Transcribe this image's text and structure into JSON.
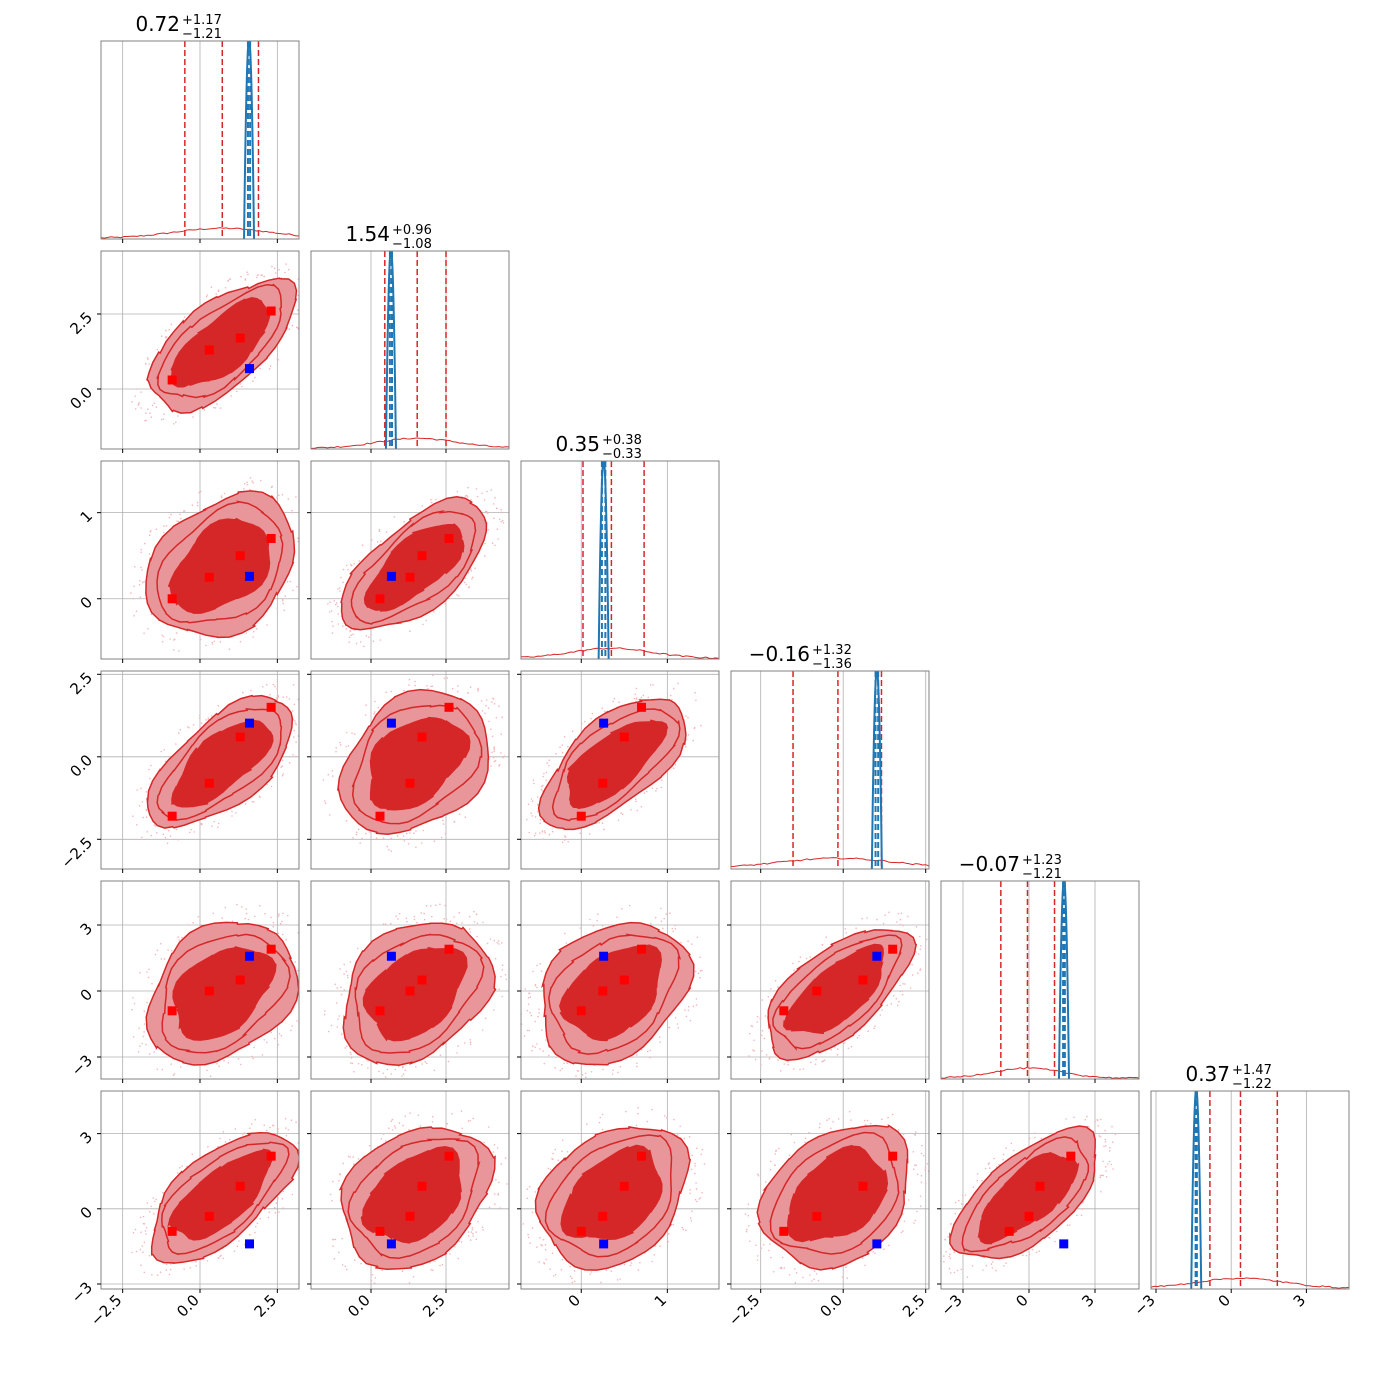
{
  "chart_data": {
    "type": "corner",
    "grid": true,
    "colors": {
      "posterior": "#d62728",
      "posterior_light": "#e9969a",
      "reference": "#1f77b4",
      "truth_marker": "#0000ff",
      "mode_marker": "#ff0000",
      "grid": "#b0b0b0",
      "frame": "#808080"
    },
    "parameters": [
      {
        "range": [
          -3.2,
          3.2
        ],
        "ticks": [
          -2.5,
          0.0,
          2.5
        ],
        "tick_labels": [
          "−2.5",
          "0.0",
          "2.5"
        ],
        "title": {
          "median": "0.72",
          "plus": "+1.17",
          "minus": "−1.21"
        },
        "quantiles": [
          -0.49,
          0.72,
          1.89
        ],
        "reference_lines": [
          1.55,
          1.62
        ],
        "truth": 1.6,
        "modes": [
          -0.9,
          0.3,
          1.3,
          2.3
        ]
      },
      {
        "range": [
          -2.0,
          4.6
        ],
        "ticks": [
          0.0,
          2.5
        ],
        "tick_labels": [
          "0.0",
          "2.5"
        ],
        "title": {
          "median": "1.54",
          "plus": "+0.96",
          "minus": "−1.08"
        },
        "quantiles": [
          0.46,
          1.54,
          2.5
        ],
        "reference_lines": [
          0.63,
          0.7
        ],
        "truth": 0.68,
        "modes": [
          0.3,
          1.3,
          1.7,
          2.6
        ]
      },
      {
        "range": [
          -0.7,
          1.6
        ],
        "ticks": [
          0,
          1
        ],
        "tick_labels": [
          "0",
          "1"
        ],
        "title": {
          "median": "0.35",
          "plus": "+0.38",
          "minus": "−0.33"
        },
        "quantiles": [
          0.02,
          0.35,
          0.73
        ],
        "reference_lines": [
          0.24,
          0.28
        ],
        "truth": 0.26,
        "modes": [
          0.0,
          0.25,
          0.5,
          0.7
        ]
      },
      {
        "range": [
          -3.4,
          2.6
        ],
        "ticks": [
          -2.5,
          0.0,
          2.5
        ],
        "tick_labels": [
          "−2.5",
          "0.0",
          "2.5"
        ],
        "title": {
          "median": "−0.16",
          "plus": "+1.32",
          "minus": "−1.36"
        },
        "quantiles": [
          -1.52,
          -0.16,
          1.16
        ],
        "reference_lines": [
          0.98,
          1.06
        ],
        "truth": 1.02,
        "modes": [
          -1.8,
          -0.8,
          0.6,
          1.5
        ]
      },
      {
        "range": [
          -4.0,
          5.0
        ],
        "ticks": [
          -3,
          0,
          3
        ],
        "tick_labels": [
          "−3",
          "0",
          "3"
        ],
        "title": {
          "median": "−0.07",
          "plus": "+1.23",
          "minus": "−1.21"
        },
        "quantiles": [
          -1.28,
          -0.07,
          1.16
        ],
        "reference_lines": [
          1.55,
          1.63
        ],
        "truth": 1.58,
        "modes": [
          -0.9,
          0.0,
          0.5,
          1.9
        ]
      },
      {
        "range": [
          -3.2,
          4.7
        ],
        "ticks": [
          -3,
          0,
          3
        ],
        "tick_labels": [
          "−3",
          "0",
          "3"
        ],
        "title": {
          "median": "0.37",
          "plus": "+1.47",
          "minus": "−1.22"
        },
        "quantiles": [
          -0.85,
          0.37,
          1.84
        ],
        "reference_lines": [
          -1.42,
          -1.37
        ],
        "truth": -1.4,
        "modes": [
          -0.9,
          -0.3,
          0.9,
          2.1
        ]
      }
    ]
  }
}
